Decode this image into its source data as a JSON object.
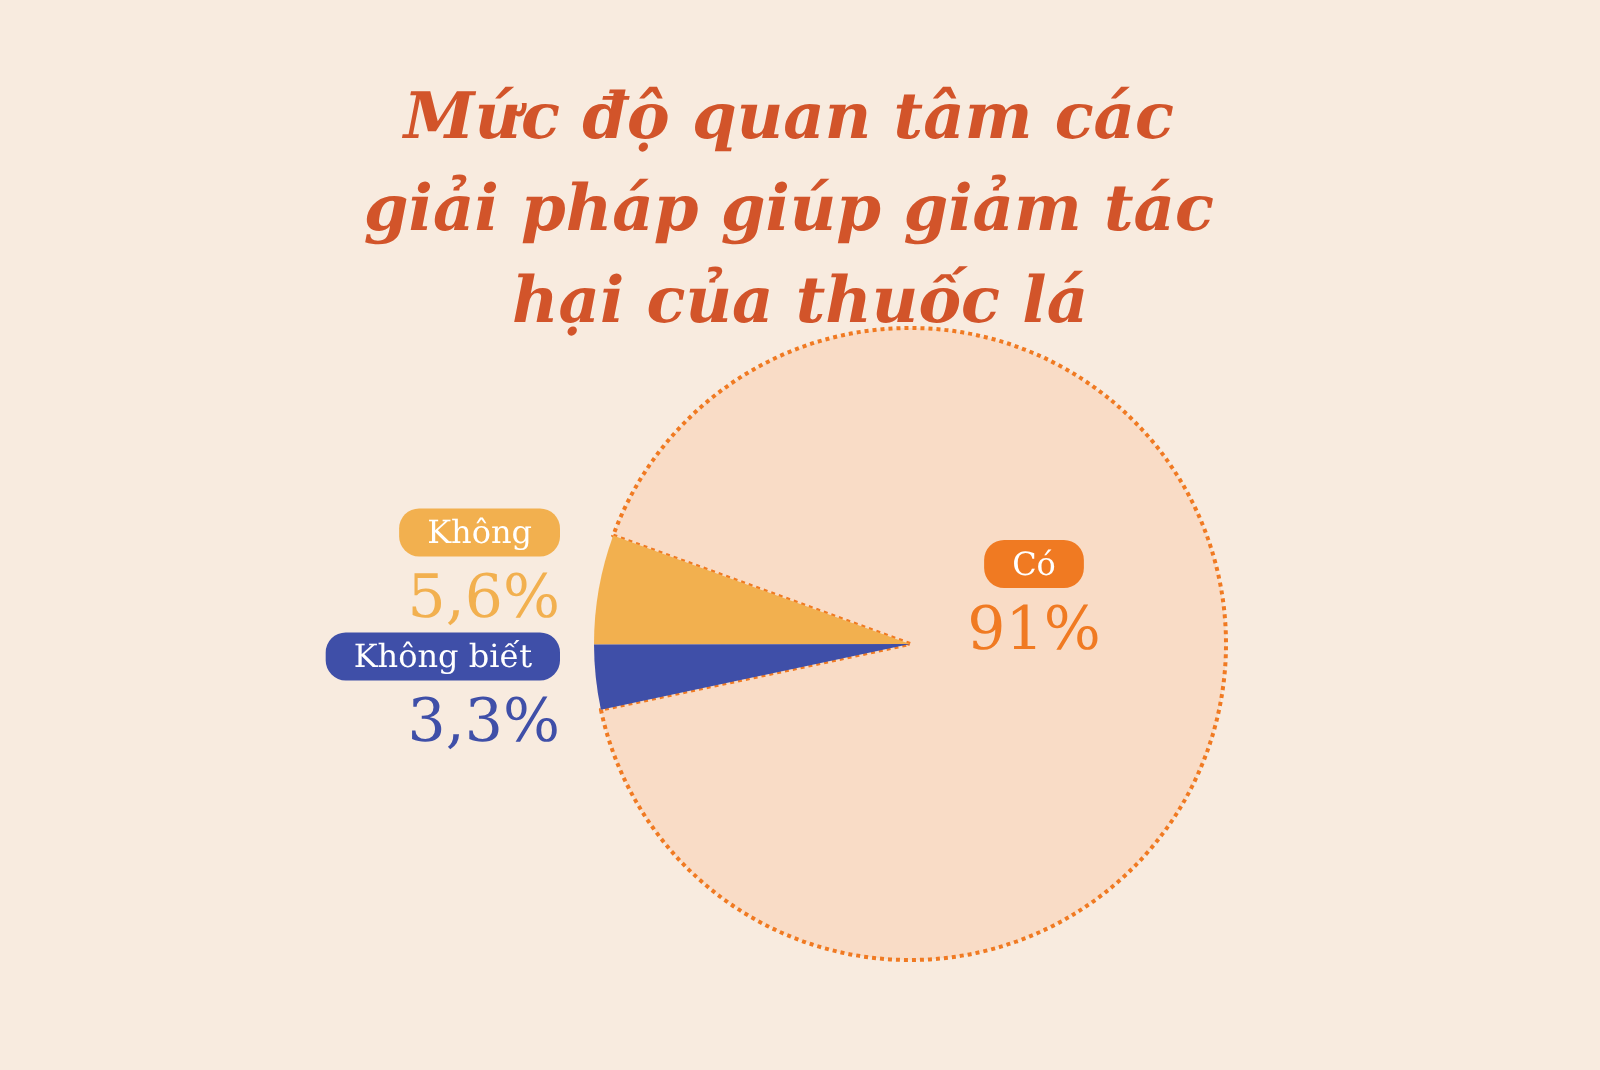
{
  "chart_data": {
    "type": "pie",
    "title": "Mức độ quan tâm các giải pháp giúp giảm tác hại của thuốc lá",
    "categories": [
      "Có",
      "Không",
      "Không biết"
    ],
    "values": [
      91,
      5.6,
      3.3
    ],
    "value_labels": [
      "91%",
      "5,6%",
      "3,3%"
    ],
    "colors": [
      "#f9dcc6",
      "#f2b04f",
      "#3f4fa8"
    ]
  }
}
